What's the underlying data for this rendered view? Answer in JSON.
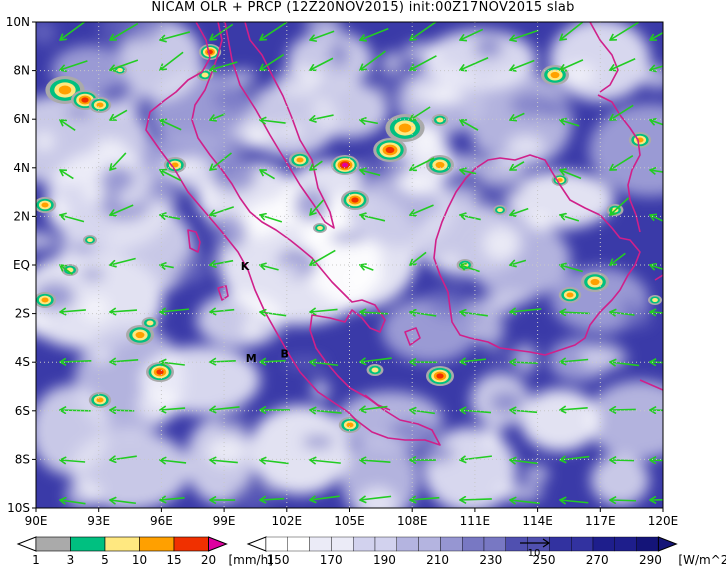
{
  "title": "NICAM OLR + PRCP (12Z20NOV2015) init:00Z17NOV2015 slab",
  "chart_data": {
    "type": "heatmap",
    "xlim": [
      90,
      120
    ],
    "ylim": [
      -10,
      10
    ],
    "x_tick_labels": [
      "90E",
      "93E",
      "96E",
      "99E",
      "102E",
      "105E",
      "108E",
      "111E",
      "114E",
      "117E",
      "120E"
    ],
    "y_tick_labels": [
      "10N",
      "8N",
      "6N",
      "4N",
      "2N",
      "EQ",
      "2S",
      "4S",
      "6S",
      "8S",
      "10S"
    ],
    "grid": true,
    "site_labels": [
      {
        "text": "K",
        "lon": 100.0,
        "lat": -0.2
      },
      {
        "text": "M",
        "lon": 100.3,
        "lat": -4.0
      },
      {
        "text": "B",
        "lon": 101.9,
        "lat": -3.8
      }
    ],
    "precip_colorbar": {
      "labels": [
        "1",
        "3",
        "5",
        "10",
        "15",
        "20"
      ],
      "unit": "[mm/h]",
      "colors": [
        "#aaaaaa",
        "#00c080",
        "#ffe880",
        "#ffa000",
        "#f03000",
        "#e000a0"
      ]
    },
    "olr_colorbar": {
      "labels": [
        "150",
        "170",
        "190",
        "210",
        "230",
        "250",
        "270",
        "290"
      ],
      "unit": "[W/m^2]",
      "colors": [
        "#ffffff",
        "#ebebf7",
        "#d2d2ee",
        "#b4b4e0",
        "#9696d2",
        "#7878c3",
        "#5050b0",
        "#3232a0",
        "#1e1e8c",
        "#141478"
      ]
    },
    "wind_reference_label": "10"
  }
}
